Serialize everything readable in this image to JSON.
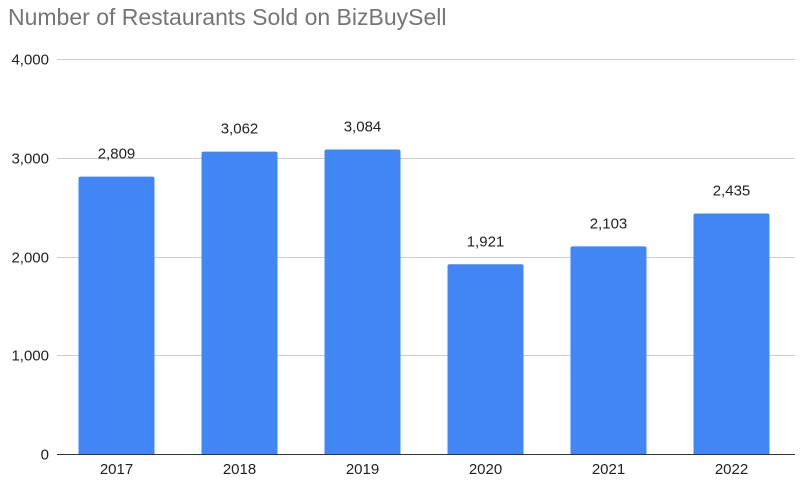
{
  "chart_data": {
    "type": "bar",
    "title": "Number of Restaurants Sold on BizBuySell",
    "categories": [
      "2017",
      "2018",
      "2019",
      "2020",
      "2021",
      "2022"
    ],
    "values": [
      2809,
      3062,
      3084,
      1921,
      2103,
      2435
    ],
    "data_labels": [
      "2,809",
      "3,062",
      "3,084",
      "1,921",
      "2,103",
      "2,435"
    ],
    "xlabel": "",
    "ylabel": "",
    "ylim": [
      0,
      4000
    ],
    "yticks": [
      0,
      1000,
      2000,
      3000,
      4000
    ],
    "ytick_labels": [
      "0",
      "1,000",
      "2,000",
      "3,000",
      "4,000"
    ],
    "grid": true,
    "legend": "none",
    "bar_color": "#4285f4"
  }
}
